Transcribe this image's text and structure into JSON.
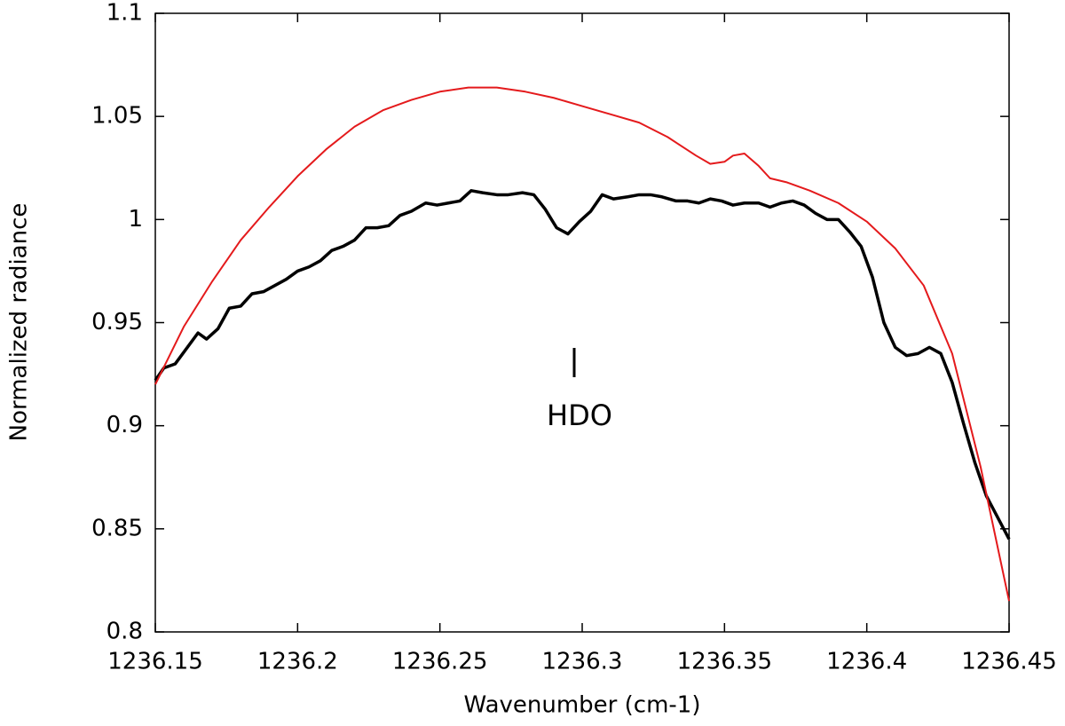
{
  "chart_data": {
    "type": "line",
    "xlabel": "Wavenumber (cm-1)",
    "ylabel": "Normalized radiance",
    "annotation": "HDO",
    "xlim": [
      1236.15,
      1236.45
    ],
    "xticks": [
      1236.15,
      1236.2,
      1236.25,
      1236.3,
      1236.35,
      1236.4,
      1236.45
    ],
    "ylim": [
      0.8,
      1.1
    ],
    "yticks": [
      0.8,
      0.85,
      0.9,
      0.95,
      1,
      1.05,
      1.1
    ],
    "grid": false,
    "series": [
      {
        "color": "#000000",
        "x": [
          1236.15,
          1236.153,
          1236.157,
          1236.165,
          1236.168,
          1236.172,
          1236.176,
          1236.18,
          1236.184,
          1236.188,
          1236.192,
          1236.196,
          1236.2,
          1236.204,
          1236.208,
          1236.212,
          1236.216,
          1236.22,
          1236.224,
          1236.228,
          1236.232,
          1236.236,
          1236.24,
          1236.245,
          1236.249,
          1236.253,
          1236.257,
          1236.261,
          1236.265,
          1236.27,
          1236.274,
          1236.279,
          1236.283,
          1236.287,
          1236.291,
          1236.295,
          1236.299,
          1236.303,
          1236.307,
          1236.311,
          1236.316,
          1236.32,
          1236.324,
          1236.328,
          1236.333,
          1236.337,
          1236.341,
          1236.345,
          1236.349,
          1236.353,
          1236.357,
          1236.362,
          1236.366,
          1236.37,
          1236.374,
          1236.378,
          1236.382,
          1236.386,
          1236.39,
          1236.394,
          1236.398,
          1236.402,
          1236.406,
          1236.41,
          1236.414,
          1236.418,
          1236.422,
          1236.426,
          1236.43,
          1236.434,
          1236.438,
          1236.442,
          1236.45
        ],
        "values": [
          0.922,
          0.928,
          0.93,
          0.945,
          0.942,
          0.947,
          0.957,
          0.958,
          0.964,
          0.965,
          0.968,
          0.971,
          0.975,
          0.977,
          0.98,
          0.985,
          0.987,
          0.99,
          0.996,
          0.996,
          0.997,
          1.002,
          1.004,
          1.008,
          1.007,
          1.008,
          1.009,
          1.014,
          1.013,
          1.012,
          1.012,
          1.013,
          1.012,
          1.005,
          0.996,
          0.993,
          0.999,
          1.004,
          1.012,
          1.01,
          1.011,
          1.012,
          1.012,
          1.011,
          1.009,
          1.009,
          1.008,
          1.01,
          1.009,
          1.007,
          1.008,
          1.008,
          1.006,
          1.008,
          1.009,
          1.007,
          1.003,
          1.0,
          1.0,
          0.994,
          0.987,
          0.972,
          0.95,
          0.938,
          0.934,
          0.935,
          0.938,
          0.935,
          0.921,
          0.901,
          0.882,
          0.866,
          0.845
        ]
      },
      {
        "color": "#e41a1c",
        "x": [
          1236.15,
          1236.16,
          1236.17,
          1236.18,
          1236.19,
          1236.2,
          1236.21,
          1236.22,
          1236.23,
          1236.24,
          1236.25,
          1236.26,
          1236.27,
          1236.28,
          1236.29,
          1236.3,
          1236.31,
          1236.32,
          1236.33,
          1236.34,
          1236.345,
          1236.35,
          1236.353,
          1236.357,
          1236.362,
          1236.366,
          1236.372,
          1236.38,
          1236.39,
          1236.4,
          1236.41,
          1236.42,
          1236.43,
          1236.44,
          1236.45
        ],
        "values": [
          0.92,
          0.948,
          0.97,
          0.99,
          1.006,
          1.021,
          1.034,
          1.045,
          1.053,
          1.058,
          1.062,
          1.064,
          1.064,
          1.062,
          1.059,
          1.055,
          1.051,
          1.047,
          1.04,
          1.031,
          1.027,
          1.028,
          1.031,
          1.032,
          1.026,
          1.02,
          1.018,
          1.014,
          1.008,
          0.999,
          0.986,
          0.968,
          0.935,
          0.88,
          0.815
        ]
      }
    ]
  }
}
